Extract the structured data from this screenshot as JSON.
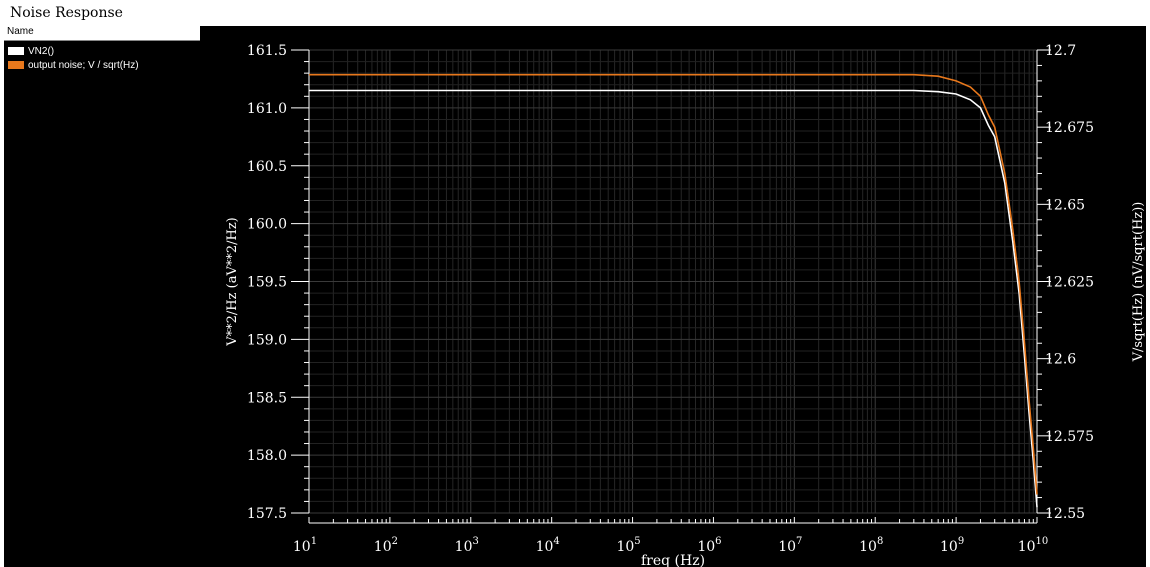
{
  "window": {
    "title": "Noise Response"
  },
  "legend": {
    "header": "Name",
    "items": [
      {
        "label": "VN2()",
        "color": "#ffffff"
      },
      {
        "label": "output noise; V / sqrt(Hz)",
        "color": "#e8781c"
      }
    ]
  },
  "chart_data": {
    "type": "line",
    "xlabel": "freq (Hz)",
    "xscale": "log",
    "xlim": [
      10,
      10000000000
    ],
    "x_ticks": [
      {
        "base": "10",
        "exp": "1"
      },
      {
        "base": "10",
        "exp": "2"
      },
      {
        "base": "10",
        "exp": "3"
      },
      {
        "base": "10",
        "exp": "4"
      },
      {
        "base": "10",
        "exp": "5"
      },
      {
        "base": "10",
        "exp": "6"
      },
      {
        "base": "10",
        "exp": "7"
      },
      {
        "base": "10",
        "exp": "8"
      },
      {
        "base": "10",
        "exp": "9"
      },
      {
        "base": "10",
        "exp": "10"
      }
    ],
    "y_left": {
      "label": "V**2/Hz (aV**2/Hz)",
      "lim": [
        157.5,
        161.5
      ],
      "ticks": [
        "157.5",
        "158.0",
        "158.5",
        "159.0",
        "159.5",
        "160.0",
        "160.5",
        "161.0",
        "161.5"
      ]
    },
    "y_right": {
      "label": "V/sqrt(Hz) (nV/sqrt(Hz))",
      "lim": [
        12.55,
        12.7
      ],
      "ticks": [
        "12.55",
        "12.575",
        "12.6",
        "12.625",
        "12.65",
        "12.675",
        "12.7"
      ]
    },
    "grid": true,
    "series": [
      {
        "name": "VN2()",
        "axis": "left",
        "color": "#ffffff",
        "x": [
          10,
          100,
          1000,
          10000,
          100000,
          1000000,
          10000000,
          100000000,
          300000000,
          600000000,
          1000000000,
          1500000000,
          2000000000,
          2500000000,
          3000000000,
          4000000000,
          5000000000,
          6000000000,
          7000000000,
          8000000000,
          9000000000,
          10000000000
        ],
        "y": [
          161.15,
          161.15,
          161.15,
          161.15,
          161.15,
          161.15,
          161.15,
          161.15,
          161.15,
          161.14,
          161.12,
          161.07,
          161.0,
          160.85,
          160.75,
          160.35,
          159.85,
          159.4,
          158.85,
          158.35,
          157.95,
          157.55
        ]
      },
      {
        "name": "output noise; V / sqrt(Hz)",
        "axis": "right",
        "color": "#e8781c",
        "x": [
          10,
          100,
          1000,
          10000,
          100000,
          1000000,
          10000000,
          100000000,
          300000000,
          600000000,
          1000000000,
          1500000000,
          2000000000,
          2500000000,
          3000000000,
          4000000000,
          5000000000,
          6000000000,
          7000000000,
          8000000000,
          9000000000,
          10000000000
        ],
        "y": [
          12.692,
          12.692,
          12.692,
          12.692,
          12.692,
          12.692,
          12.692,
          12.692,
          12.692,
          12.6915,
          12.69,
          12.688,
          12.685,
          12.679,
          12.675,
          12.66,
          12.642,
          12.625,
          12.605,
          12.586,
          12.571,
          12.556
        ]
      }
    ]
  }
}
